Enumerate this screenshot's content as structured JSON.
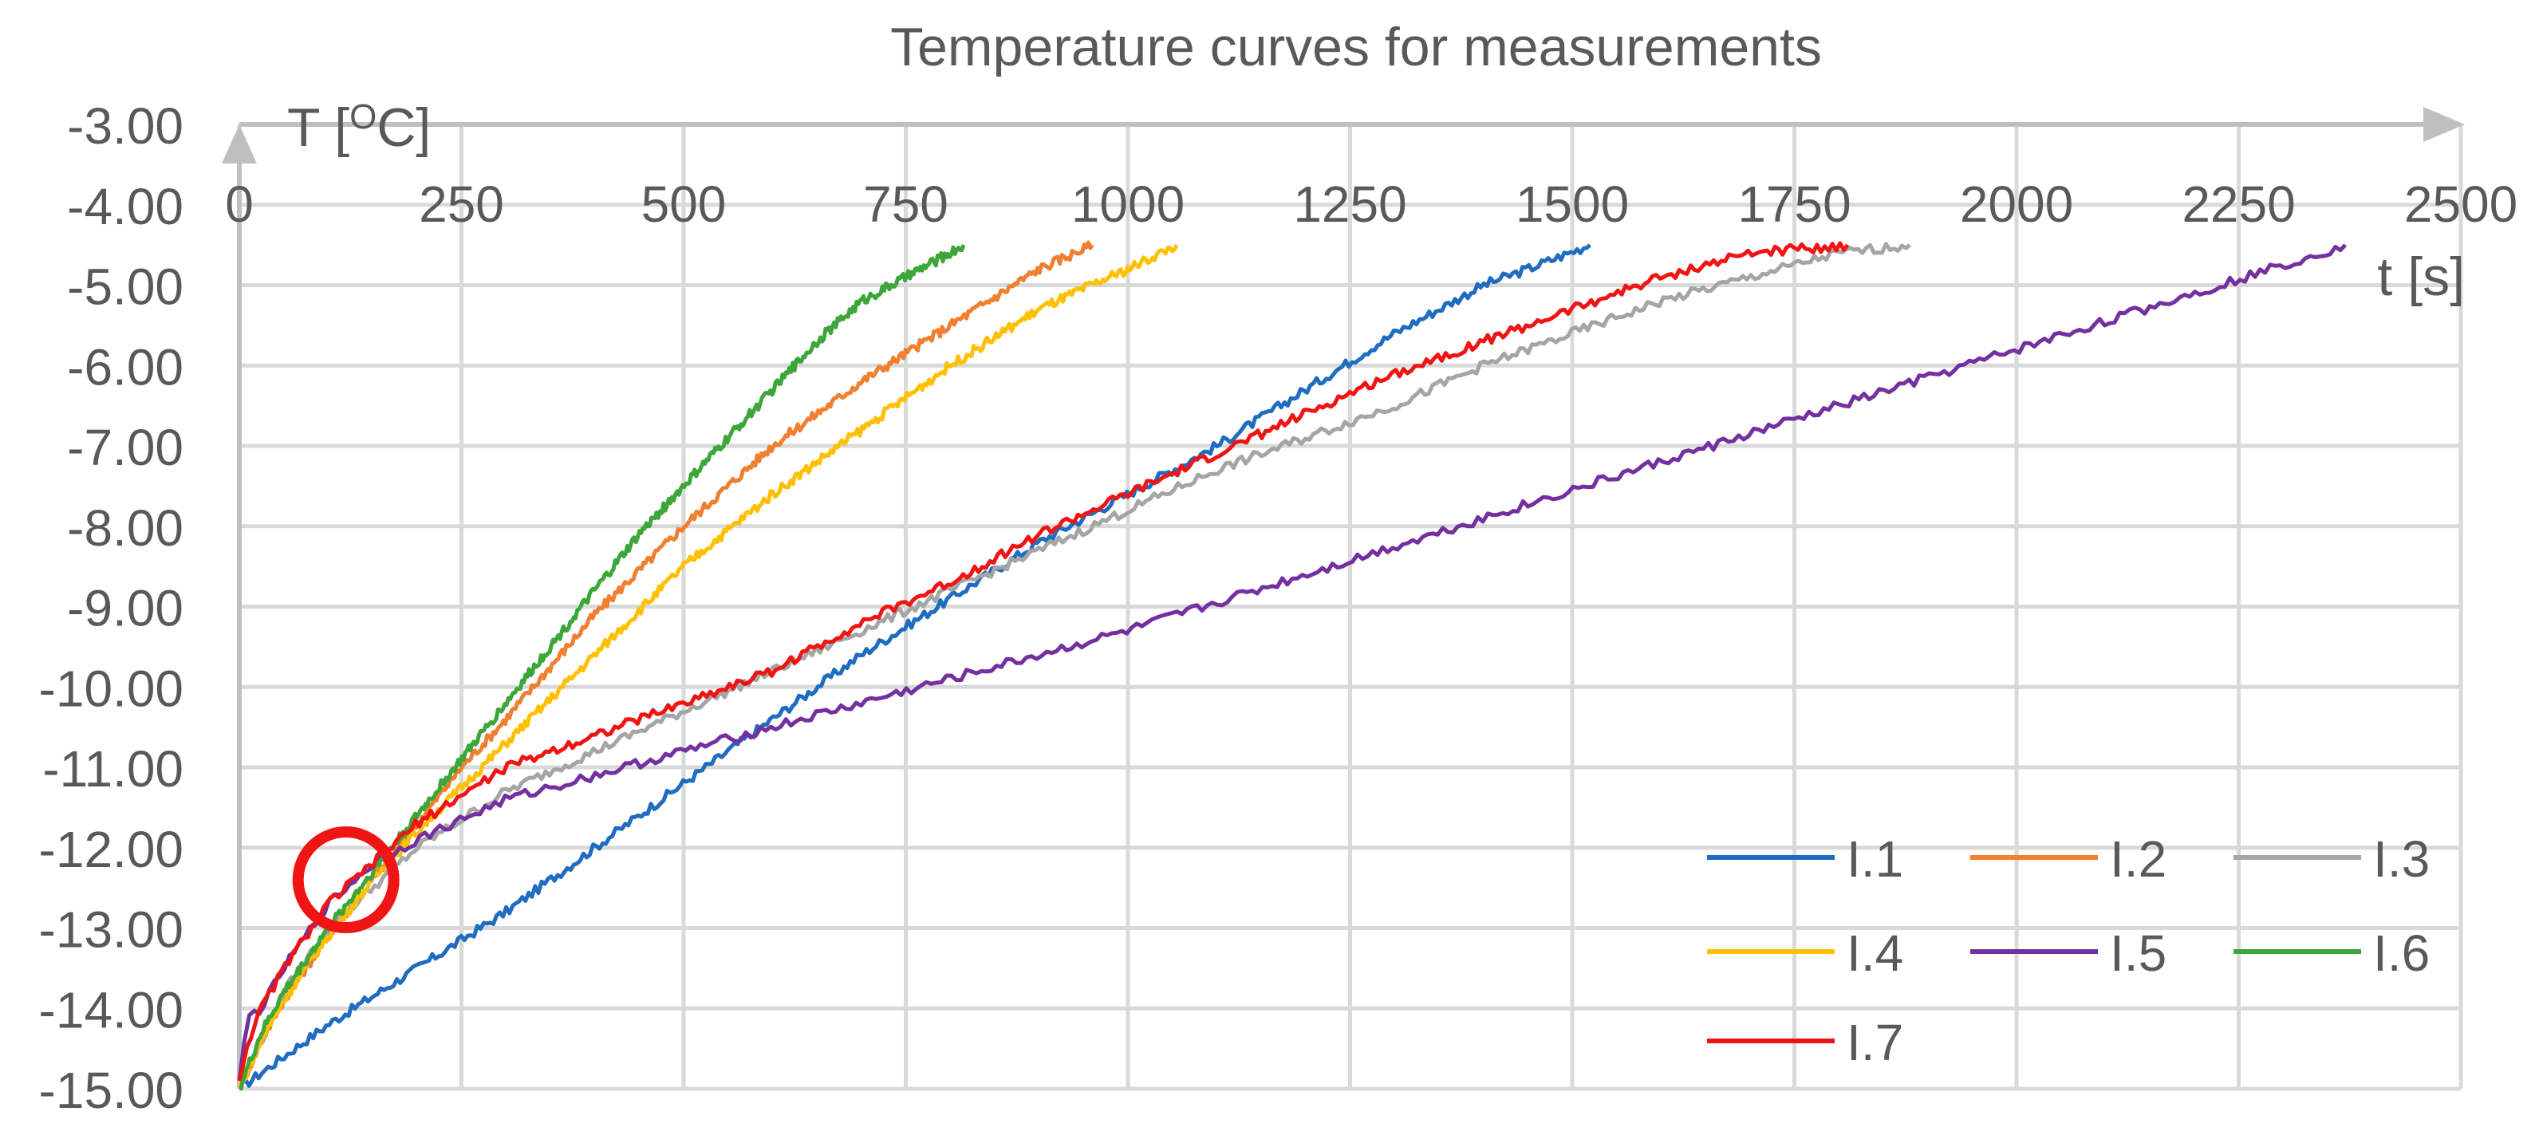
{
  "chart_data": {
    "type": "line",
    "title": "Temperature curves for measurements",
    "ylabel": "T [",
    "ylabel_sup": "O",
    "ylabel_end": "C]",
    "xlabel": "t [s]",
    "xlim": [
      0,
      2500
    ],
    "ylim": [
      -15,
      -3
    ],
    "x_ticks": [
      0,
      250,
      500,
      750,
      1000,
      1250,
      1500,
      1750,
      2000,
      2250,
      2500
    ],
    "y_ticks": [
      -3,
      -4,
      -5,
      -6,
      -7,
      -8,
      -9,
      -10,
      -11,
      -12,
      -13,
      -14,
      -15
    ],
    "x_tick_labels": [
      "0",
      "250",
      "500",
      "750",
      "1000",
      "1250",
      "1500",
      "1750",
      "2000",
      "2250",
      "2500"
    ],
    "y_tick_labels": [
      "-3.00",
      "-4.00",
      "-5.00",
      "-6.00",
      "-7.00",
      "-8.00",
      "-9.00",
      "-10.00",
      "-11.00",
      "-12.00",
      "-13.00",
      "-14.00",
      "-15.00"
    ],
    "grid": true,
    "legend_position": "bottom-right",
    "series": [
      {
        "name": "I.1",
        "color": "#1F6CC0",
        "x": [
          0,
          50,
          100,
          200,
          300,
          400,
          500,
          600,
          700,
          800,
          900,
          1000,
          1100,
          1200,
          1300,
          1400,
          1450,
          1520
        ],
        "y": [
          -15.0,
          -14.6,
          -14.2,
          -13.5,
          -12.8,
          -12.0,
          -11.2,
          -10.4,
          -9.6,
          -8.9,
          -8.2,
          -7.6,
          -7.0,
          -6.3,
          -5.6,
          -5.0,
          -4.8,
          -4.5
        ]
      },
      {
        "name": "I.2",
        "color": "#F07F30",
        "x": [
          0,
          25,
          50,
          100,
          150,
          200,
          250,
          300,
          400,
          500,
          600,
          700,
          800,
          900,
          960
        ],
        "y": [
          -15.0,
          -14.4,
          -13.9,
          -13.1,
          -12.4,
          -11.7,
          -11.0,
          -10.4,
          -9.1,
          -8.0,
          -7.0,
          -6.2,
          -5.5,
          -4.8,
          -4.5
        ]
      },
      {
        "name": "I.3",
        "color": "#A5A5A5",
        "x": [
          0,
          25,
          50,
          100,
          200,
          300,
          400,
          500,
          600,
          700,
          800,
          900,
          1000,
          1100,
          1200,
          1300,
          1400,
          1500,
          1600,
          1700,
          1800,
          1880
        ],
        "y": [
          -15.0,
          -14.4,
          -13.8,
          -13.0,
          -12.0,
          -11.3,
          -10.8,
          -10.3,
          -9.8,
          -9.3,
          -8.8,
          -8.3,
          -7.8,
          -7.3,
          -6.9,
          -6.5,
          -6.0,
          -5.6,
          -5.2,
          -4.9,
          -4.6,
          -4.5
        ]
      },
      {
        "name": "I.4",
        "color": "#FEC000",
        "x": [
          0,
          25,
          50,
          100,
          150,
          200,
          300,
          400,
          500,
          600,
          700,
          800,
          900,
          1000,
          1055
        ],
        "y": [
          -15.0,
          -14.4,
          -13.9,
          -13.1,
          -12.4,
          -11.8,
          -10.7,
          -9.6,
          -8.5,
          -7.6,
          -6.8,
          -6.0,
          -5.3,
          -4.8,
          -4.5
        ]
      },
      {
        "name": "I.5",
        "color": "#7430A0",
        "x": [
          0,
          10,
          25,
          50,
          100,
          150,
          200,
          300,
          400,
          500,
          600,
          700,
          800,
          900,
          1000,
          1200,
          1400,
          1600,
          1800,
          2000,
          2200,
          2370
        ],
        "y": [
          -14.9,
          -14.1,
          -14.0,
          -13.5,
          -12.7,
          -12.2,
          -11.9,
          -11.4,
          -11.1,
          -10.8,
          -10.5,
          -10.2,
          -9.9,
          -9.6,
          -9.3,
          -8.6,
          -7.9,
          -7.2,
          -6.5,
          -5.8,
          -5.1,
          -4.5
        ]
      },
      {
        "name": "I.6",
        "color": "#3DA63A",
        "x": [
          0,
          25,
          50,
          100,
          150,
          200,
          250,
          300,
          350,
          400,
          450,
          500,
          550,
          600,
          650,
          700,
          750,
          800,
          815
        ],
        "y": [
          -15.0,
          -14.3,
          -13.8,
          -13.0,
          -12.3,
          -11.6,
          -10.9,
          -10.2,
          -9.5,
          -8.8,
          -8.1,
          -7.5,
          -6.9,
          -6.3,
          -5.7,
          -5.2,
          -4.9,
          -4.6,
          -4.5
        ]
      },
      {
        "name": "I.7",
        "color": "#F01515",
        "x": [
          0,
          10,
          25,
          50,
          100,
          150,
          200,
          300,
          400,
          500,
          600,
          700,
          800,
          900,
          1000,
          1100,
          1200,
          1300,
          1400,
          1500,
          1600,
          1700,
          1810
        ],
        "y": [
          -14.9,
          -14.4,
          -14.0,
          -13.5,
          -12.7,
          -12.2,
          -11.7,
          -11.0,
          -10.6,
          -10.2,
          -9.8,
          -9.2,
          -8.7,
          -8.1,
          -7.6,
          -7.1,
          -6.6,
          -6.1,
          -5.7,
          -5.3,
          -4.9,
          -4.6,
          -4.5
        ]
      }
    ],
    "annotations": [
      {
        "type": "circle",
        "x": 120,
        "y": -12.4,
        "color": "#F01515"
      }
    ]
  }
}
